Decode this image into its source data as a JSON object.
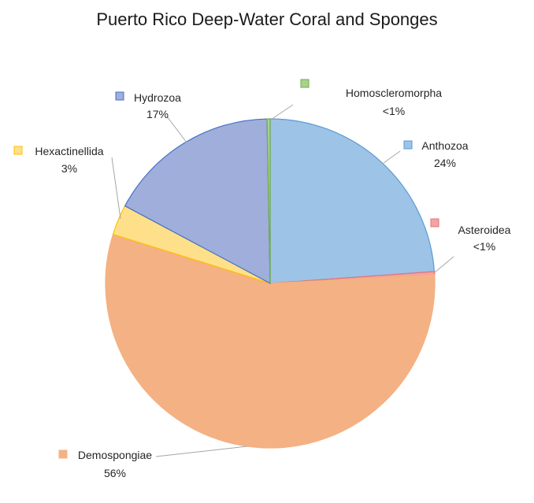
{
  "chart_data": {
    "type": "pie",
    "title": "Puerto Rico Deep-Water Coral and Sponges",
    "slices": [
      {
        "name": "Anthozoa",
        "value": 24,
        "label": "24%",
        "color": "#9DC3E6",
        "edge": "#5B9BD5"
      },
      {
        "name": "Asteroidea",
        "value": 0.3,
        "label": "<1%",
        "color": "#F4A3A3",
        "edge": "#E57373"
      },
      {
        "name": "Demospongiae",
        "value": 56,
        "label": "56%",
        "color": "#F4B183",
        "edge": "#F4B183"
      },
      {
        "name": "Hexactinellida",
        "value": 3,
        "label": "3%",
        "color": "#FFE08A",
        "edge": "#FFC000"
      },
      {
        "name": "Hydrozoa",
        "value": 17,
        "label": "17%",
        "color": "#9FAEDB",
        "edge": "#4472C4"
      },
      {
        "name": "Homoscleromorpha",
        "value": 0.3,
        "label": "<1%",
        "color": "#A9D18E",
        "edge": "#70AD47"
      }
    ],
    "legend": "none (data labels with category names)"
  }
}
